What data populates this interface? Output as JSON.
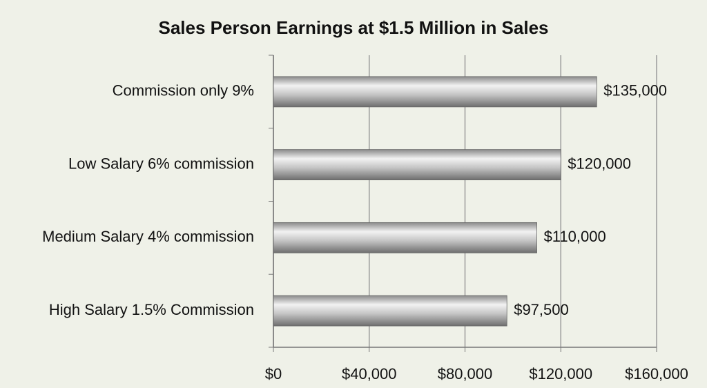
{
  "chart_data": {
    "type": "bar",
    "orientation": "horizontal",
    "title": "Sales Person Earnings at $1.5 Million in Sales",
    "categories": [
      "Commission only 9%",
      "Low Salary 6% commission",
      "Medium Salary 4% commission",
      "High Salary 1.5% Commission"
    ],
    "values": [
      135000,
      120000,
      110000,
      97500
    ],
    "value_labels": [
      "$135,000",
      "$120,000",
      "$110,000",
      "$97,500"
    ],
    "color": "#a6a6a6",
    "xlim": [
      0,
      160000
    ],
    "xticks": [
      {
        "value": 0,
        "label": "$0"
      },
      {
        "value": 40000,
        "label": "$40,000"
      },
      {
        "value": 80000,
        "label": "$80,000"
      },
      {
        "value": 120000,
        "label": "$120,000"
      },
      {
        "value": 160000,
        "label": "$160,000"
      }
    ],
    "grid": true
  }
}
